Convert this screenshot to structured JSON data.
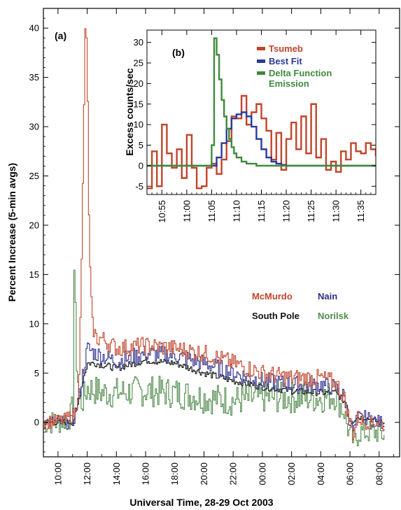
{
  "chart_data": [
    {
      "panel": "(a)",
      "type": "line",
      "xlabel": "Universal Time, 28-29 Oct 2003",
      "ylabel": "Percent Increase (5-min avgs)",
      "xlim_hours": [
        9.0,
        33.4
      ],
      "ylim": [
        -3.5,
        42
      ],
      "x_ticks": [
        "10:00",
        "12:00",
        "14:00",
        "16:00",
        "18:00",
        "20:00",
        "22:00",
        "00:00",
        "02:00",
        "04:00",
        "06:00",
        "08:00"
      ],
      "y_ticks": [
        0,
        5,
        10,
        15,
        20,
        25,
        30,
        35,
        40
      ],
      "grid": false,
      "legend_position": "right, middle",
      "series": [
        {
          "name": "McMurdo",
          "color": "#c0452a",
          "step": true,
          "x": [
            9.0,
            10.4,
            11.2,
            11.4,
            11.55,
            11.7,
            11.8,
            11.88,
            12.0,
            12.1,
            12.3,
            12.6,
            13.0,
            14.0,
            16.0,
            18.0,
            20.0,
            22.0,
            0.0,
            2.0,
            4.0,
            5.0,
            5.6,
            5.8,
            6.0,
            6.2,
            6.5,
            7.0,
            8.0,
            8.4
          ],
          "x_is_next_day_from_index": 18,
          "y": [
            0.0,
            0.2,
            1.0,
            4.5,
            13.0,
            27.0,
            38.0,
            41.0,
            33.0,
            18.0,
            10.0,
            8.5,
            8.5,
            7.5,
            7.8,
            7.5,
            7.0,
            6.0,
            5.0,
            4.5,
            4.5,
            4.0,
            2.5,
            1.0,
            0.0,
            -1.5,
            0.5,
            0.0,
            0.0,
            -0.5
          ]
        },
        {
          "name": "Nain",
          "color": "#2e2e8c",
          "step": true,
          "x": [
            9.0,
            11.0,
            11.4,
            11.8,
            12.0,
            12.5,
            14.0,
            16.0,
            18.0,
            20.0,
            22.0,
            0.0,
            2.0,
            4.0,
            5.0,
            5.6,
            5.8,
            6.0,
            6.2,
            6.5,
            7.0,
            8.0,
            8.4
          ],
          "x_is_next_day_from_index": 11,
          "y": [
            0.0,
            0.0,
            2.5,
            6.0,
            7.5,
            7.0,
            6.2,
            7.0,
            6.8,
            6.0,
            5.0,
            4.2,
            3.8,
            3.8,
            3.5,
            2.5,
            1.0,
            0.0,
            -1.0,
            0.5,
            0.5,
            0.0,
            0.0
          ]
        },
        {
          "name": "South Pole",
          "color": "#111111",
          "step": true,
          "x": [
            9.0,
            11.0,
            11.3,
            11.7,
            12.0,
            12.5,
            14.0,
            16.0,
            18.0,
            20.0,
            22.0,
            0.0,
            2.0,
            4.0,
            5.0,
            5.7,
            5.9,
            6.1,
            6.4,
            7.0,
            8.0,
            8.4
          ],
          "x_is_next_day_from_index": 11,
          "y": [
            0.0,
            0.0,
            1.5,
            4.5,
            6.0,
            6.0,
            5.5,
            6.3,
            6.0,
            5.0,
            4.2,
            3.6,
            3.2,
            3.0,
            3.0,
            2.0,
            0.5,
            0.0,
            0.5,
            0.5,
            0.0,
            0.0
          ]
        },
        {
          "name": "Norilsk",
          "color": "#4f8a4a",
          "step": true,
          "x": [
            9.0,
            10.0,
            10.8,
            11.0,
            11.1,
            11.15,
            11.25,
            11.4,
            11.6,
            12.0,
            13.0,
            14.0,
            16.0,
            18.0,
            20.0,
            22.0,
            0.0,
            2.0,
            4.0,
            5.0,
            5.6,
            5.8,
            6.0,
            6.3,
            6.6,
            7.0,
            8.0,
            8.4
          ],
          "x_is_next_day_from_index": 16,
          "y": [
            0.0,
            0.0,
            0.5,
            2.0,
            18.3,
            12.0,
            6.0,
            3.0,
            2.0,
            3.5,
            3.0,
            3.0,
            3.2,
            3.0,
            2.5,
            2.2,
            2.5,
            2.5,
            2.5,
            2.8,
            1.0,
            -0.5,
            -1.5,
            -2.0,
            -1.0,
            -1.0,
            -1.0,
            -1.5
          ]
        }
      ]
    },
    {
      "panel": "(b)",
      "type": "line",
      "xlabel": "",
      "ylabel": "Excess counts/sec",
      "xlim": [
        "10:52",
        "11:38"
      ],
      "ylim": [
        -7,
        33
      ],
      "x_ticks": [
        "10:55",
        "11:00",
        "11:05",
        "11:10",
        "11:15",
        "11:20",
        "11:25",
        "11:30",
        "11:35"
      ],
      "y_ticks": [
        -5,
        0,
        5,
        10,
        15,
        20,
        25,
        30
      ],
      "grid": false,
      "legend_position": "top-right",
      "series": [
        {
          "name": "Tsumeb",
          "color": "#c0452a",
          "step": true,
          "x_minutes_after_1050": [
            2,
            3,
            4,
            5,
            6,
            7,
            8,
            9,
            10,
            11,
            12,
            13,
            14,
            15,
            16,
            17,
            18,
            19,
            20,
            21,
            22,
            23,
            24,
            25,
            26,
            27,
            28,
            29,
            30,
            31,
            32,
            33,
            34,
            35,
            36,
            37,
            38,
            39,
            40,
            41,
            42,
            43,
            44,
            45,
            46,
            47,
            48,
            49
          ],
          "y": [
            -5.5,
            3.5,
            -5.0,
            10.0,
            3.0,
            -0.5,
            4.0,
            -3.0,
            7.5,
            -0.5,
            -5.5,
            -5.0,
            -0.5,
            0.5,
            -2.0,
            1.5,
            6.0,
            12.0,
            11.5,
            17.0,
            10.0,
            13.0,
            15.0,
            11.5,
            8.5,
            1.5,
            8.0,
            -1.0,
            6.5,
            10.5,
            4.0,
            12.0,
            3.0,
            15.0,
            2.0,
            6.5,
            -1.0,
            1.0,
            -1.5,
            3.5,
            1.5,
            5.5,
            3.5,
            3.0,
            5.5,
            4.0,
            2.5,
            1.0
          ]
        },
        {
          "name": "Best Fit",
          "color": "#2b3a9c",
          "step": true,
          "x_minutes_after_1050": [
            2,
            15,
            16,
            17,
            18,
            19,
            20,
            21,
            22,
            23,
            24,
            25,
            26,
            27,
            28,
            29,
            30,
            32,
            49
          ],
          "y": [
            0.0,
            0.0,
            2.0,
            5.5,
            9.0,
            11.5,
            12.5,
            13.0,
            12.0,
            9.5,
            6.5,
            4.0,
            2.0,
            1.0,
            0.5,
            0.2,
            0.0,
            0.0,
            0.0
          ]
        },
        {
          "name": "Delta Function Emission",
          "color": "#3f8a3d",
          "step": true,
          "x_minutes_after_1050": [
            2,
            14.5,
            15.0,
            15.5,
            16.0,
            16.5,
            17.0,
            17.5,
            18.0,
            18.5,
            19.0,
            19.5,
            20.0,
            21.0,
            22.0,
            24.0,
            49
          ],
          "y": [
            0.0,
            0.0,
            5.0,
            31.0,
            27.0,
            21.0,
            16.0,
            12.0,
            9.0,
            6.5,
            4.5,
            3.0,
            2.0,
            1.0,
            0.5,
            0.0,
            0.0
          ]
        }
      ]
    }
  ],
  "legend_a": {
    "McMurdo": "McMurdo",
    "Nain": "Nain",
    "South_Pole": "South Pole",
    "Norilsk": "Norilsk"
  },
  "legend_b": {
    "Tsumeb": "Tsumeb",
    "Best_Fit": "Best Fit",
    "Delta_line1": "Delta Function",
    "Delta_line2": "Emission"
  },
  "colors": {
    "mcmurdo": "#c0452a",
    "nain": "#2e2e8c",
    "south_pole": "#111111",
    "norilsk": "#4f8a4a",
    "tsumeb": "#c0452a",
    "best_fit": "#2b3a9c",
    "delta": "#3f8a3d"
  }
}
